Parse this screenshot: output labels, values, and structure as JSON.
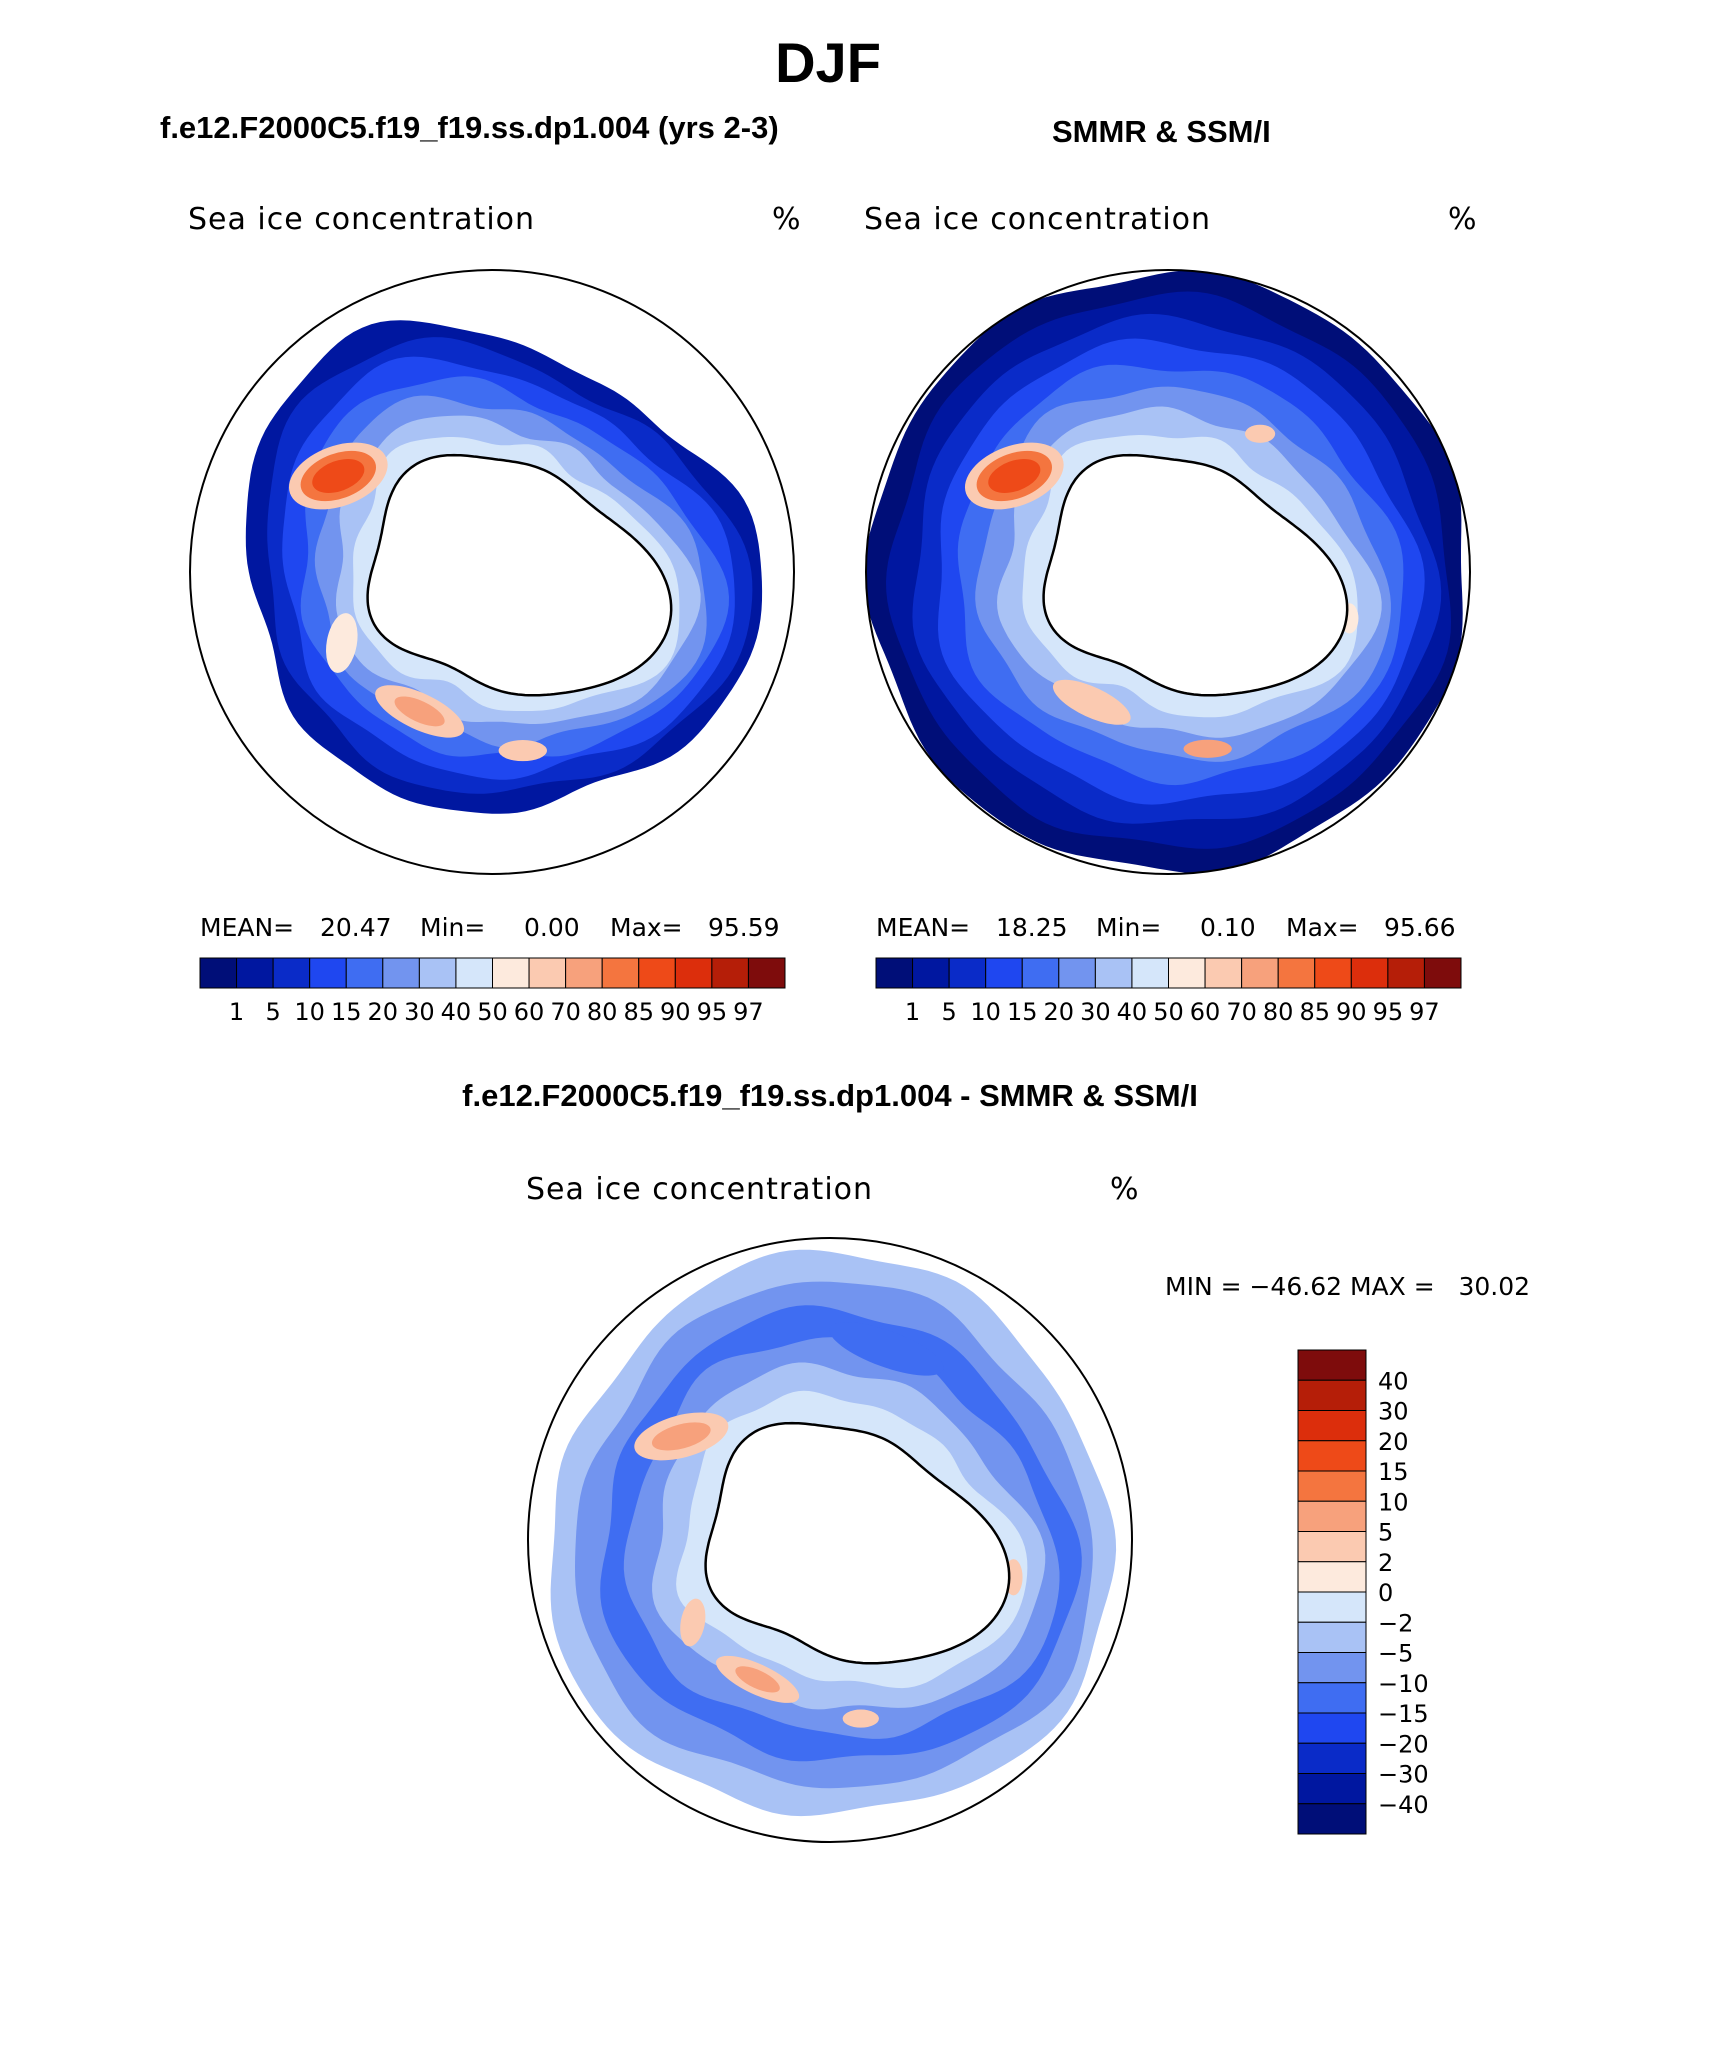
{
  "page_title": "DJF",
  "colors": {
    "land": "#ffffff",
    "coast": "#000000",
    "palette": [
      "#000e78",
      "#0017a0",
      "#0a2bc8",
      "#1f47f0",
      "#3f6df2",
      "#7294ef",
      "#a9c2f5",
      "#d5e6fa",
      "#fdeadd",
      "#fbcab1",
      "#f7a17c",
      "#f4753f",
      "#ee4a18",
      "#dc2e0c",
      "#b51e08",
      "#7e0c0c"
    ]
  },
  "chart_data": [
    {
      "type": "heatmap",
      "panel": "model",
      "title": "f.e12.F2000C5.f19_f19.ss.dp1.004 (yrs 2-3)",
      "subtitle": "Sea ice concentration",
      "units": "%",
      "projection": "south-polar-stereographic",
      "stats_labels": {
        "mean": "MEAN=",
        "min": "Min=",
        "max": "Max="
      },
      "stats": {
        "mean": "20.47",
        "min": "0.00",
        "max": "95.59"
      },
      "levels": [
        "1",
        "5",
        "10",
        "15",
        "20",
        "30",
        "40",
        "50",
        "60",
        "70",
        "80",
        "85",
        "90",
        "95",
        "97"
      ],
      "colorbar": "horizontal"
    },
    {
      "type": "heatmap",
      "panel": "observations",
      "title": "SMMR & SSM/I",
      "subtitle": "Sea ice concentration",
      "units": "%",
      "projection": "south-polar-stereographic",
      "stats_labels": {
        "mean": "MEAN=",
        "min": "Min=",
        "max": "Max="
      },
      "stats": {
        "mean": "18.25",
        "min": "0.10",
        "max": "95.66"
      },
      "levels": [
        "1",
        "5",
        "10",
        "15",
        "20",
        "30",
        "40",
        "50",
        "60",
        "70",
        "80",
        "85",
        "90",
        "95",
        "97"
      ],
      "colorbar": "horizontal"
    },
    {
      "type": "heatmap",
      "panel": "difference",
      "title": "f.e12.F2000C5.f19_f19.ss.dp1.004 - SMMR & SSM/I",
      "subtitle": "Sea ice concentration",
      "units": "%",
      "projection": "south-polar-stereographic",
      "minmax_text": "MIN = −46.62 MAX =   30.02",
      "levels": [
        "−40",
        "−30",
        "−20",
        "−15",
        "−10",
        "−5",
        "−2",
        "0",
        "2",
        "5",
        "10",
        "15",
        "20",
        "30",
        "40"
      ],
      "colorbar": "vertical"
    }
  ]
}
